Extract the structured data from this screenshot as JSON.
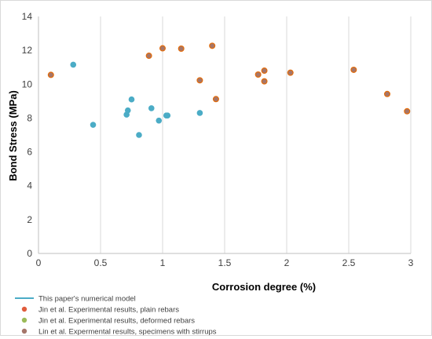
{
  "chart_data": {
    "type": "scatter",
    "title": "",
    "xlabel": "Corrosion degree (%)",
    "ylabel": "Bond Stress (MPa)",
    "xlim": [
      0,
      3
    ],
    "ylim": [
      0,
      14
    ],
    "xticks": [
      "0",
      "0.5",
      "1",
      "1.5",
      "2",
      "2.5",
      "3"
    ],
    "yticks": [
      "0",
      "2",
      "4",
      "6",
      "8",
      "10",
      "12",
      "14"
    ],
    "grid": "vertical",
    "legend": "bottom-left",
    "series": [
      {
        "name": "This paper's numerical model",
        "marker": "line",
        "color": "#4bacc6",
        "points": [
          [
            0.28,
            11.15
          ],
          [
            0.44,
            7.6
          ],
          [
            0.71,
            8.2
          ],
          [
            0.72,
            8.45
          ],
          [
            0.75,
            9.1
          ],
          [
            0.81,
            7.0
          ],
          [
            0.91,
            8.58
          ],
          [
            0.97,
            7.85
          ],
          [
            1.03,
            8.15
          ],
          [
            1.04,
            8.15
          ],
          [
            1.3,
            8.3
          ]
        ]
      },
      {
        "name": "Jin et al. Experimental results, plain rebars",
        "marker": "circle",
        "color": "#e05c3c",
        "points": []
      },
      {
        "name": "Jin et al. Experimental results, deformed rebars",
        "marker": "circle",
        "color": "#9bbb59",
        "points": []
      },
      {
        "name": "Lin et al. Expermental results, specimens with stirrups",
        "marker": "circle",
        "color": "#a5766a",
        "points": [
          [
            0.1,
            10.55
          ],
          [
            0.89,
            11.68
          ],
          [
            1.0,
            12.12
          ],
          [
            1.15,
            12.1
          ],
          [
            1.3,
            10.23
          ],
          [
            1.4,
            12.27
          ],
          [
            1.43,
            9.12
          ],
          [
            1.77,
            10.57
          ],
          [
            1.82,
            10.8
          ],
          [
            1.82,
            10.17
          ],
          [
            2.03,
            10.68
          ],
          [
            2.54,
            10.85
          ],
          [
            2.81,
            9.42
          ],
          [
            2.97,
            8.4
          ]
        ]
      }
    ]
  }
}
